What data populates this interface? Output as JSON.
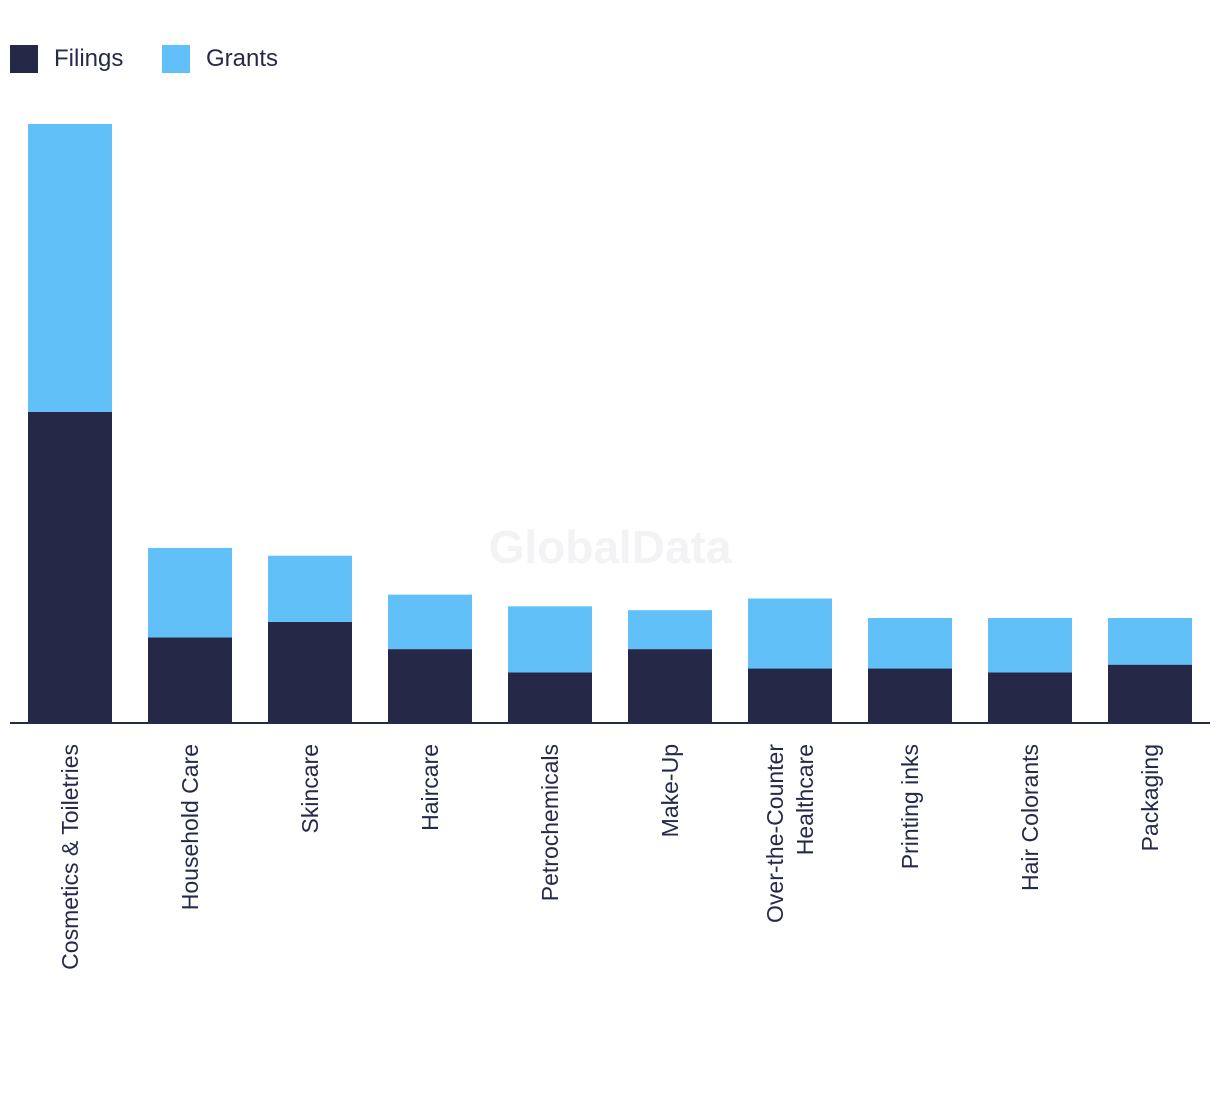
{
  "chart_data": {
    "type": "bar",
    "stacked": true,
    "title": "",
    "xlabel": "",
    "ylabel": "",
    "ylim": [
      0,
      154
    ],
    "grid": false,
    "legend_position": "top-left",
    "watermark": "GlobalData",
    "categories": [
      "Cosmetics & Toiletries",
      "Household Care",
      "Skincare",
      "Haircare",
      "Petrochemicals",
      "Make-Up",
      "Over-the-Counter Healthcare",
      "Printing inks",
      "Hair Colorants",
      "Packaging"
    ],
    "category_lines": [
      [
        "Cosmetics & Toiletries"
      ],
      [
        "Household Care"
      ],
      [
        "Skincare"
      ],
      [
        "Haircare"
      ],
      [
        "Petrochemicals"
      ],
      [
        "Make-Up"
      ],
      [
        "Over-the-Counter",
        "Healthcare"
      ],
      [
        "Printing inks"
      ],
      [
        "Hair Colorants"
      ],
      [
        "Packaging"
      ]
    ],
    "series": [
      {
        "name": "Filings",
        "color": "#262848",
        "values": [
          80,
          22,
          26,
          19,
          13,
          19,
          14,
          14,
          13,
          15
        ]
      },
      {
        "name": "Grants",
        "color": "#62c0f8",
        "values": [
          74,
          23,
          17,
          14,
          17,
          10,
          18,
          13,
          14,
          12
        ]
      }
    ]
  }
}
